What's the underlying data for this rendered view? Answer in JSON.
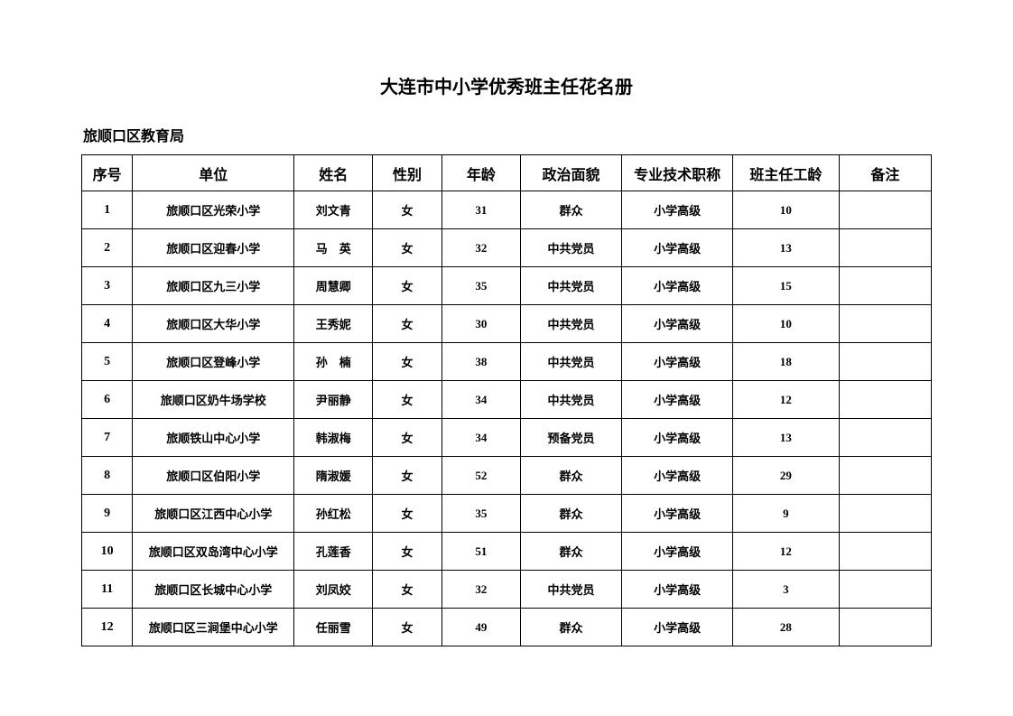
{
  "title": "大连市中小学优秀班主任花名册",
  "subtitle": "旅顺口区教育局",
  "columns": [
    "序号",
    "单位",
    "姓名",
    "性别",
    "年龄",
    "政治面貌",
    "专业技术职称",
    "班主任工龄",
    "备注"
  ],
  "rows": [
    {
      "seq": "1",
      "unit": "旅顺口区光荣小学",
      "name": "刘文青",
      "gender": "女",
      "age": "31",
      "political": "群众",
      "ptitle": "小学高级",
      "years": "10",
      "remark": ""
    },
    {
      "seq": "2",
      "unit": "旅顺口区迎春小学",
      "name": "马　英",
      "gender": "女",
      "age": "32",
      "political": "中共党员",
      "ptitle": "小学高级",
      "years": "13",
      "remark": ""
    },
    {
      "seq": "3",
      "unit": "旅顺口区九三小学",
      "name": "周慧卿",
      "gender": "女",
      "age": "35",
      "political": "中共党员",
      "ptitle": "小学高级",
      "years": "15",
      "remark": ""
    },
    {
      "seq": "4",
      "unit": "旅顺口区大华小学",
      "name": "王秀妮",
      "gender": "女",
      "age": "30",
      "political": "中共党员",
      "ptitle": "小学高级",
      "years": "10",
      "remark": ""
    },
    {
      "seq": "5",
      "unit": "旅顺口区登峰小学",
      "name": "孙　楠",
      "gender": "女",
      "age": "38",
      "political": "中共党员",
      "ptitle": "小学高级",
      "years": "18",
      "remark": ""
    },
    {
      "seq": "6",
      "unit": "旅顺口区奶牛场学校",
      "name": "尹丽静",
      "gender": "女",
      "age": "34",
      "political": "中共党员",
      "ptitle": "小学高级",
      "years": "12",
      "remark": ""
    },
    {
      "seq": "7",
      "unit": "旅顺铁山中心小学",
      "name": "韩淑梅",
      "gender": "女",
      "age": "34",
      "political": "预备党员",
      "ptitle": "小学高级",
      "years": "13",
      "remark": ""
    },
    {
      "seq": "8",
      "unit": "旅顺口区伯阳小学",
      "name": "隋淑媛",
      "gender": "女",
      "age": "52",
      "political": "群众",
      "ptitle": "小学高级",
      "years": "29",
      "remark": ""
    },
    {
      "seq": "9",
      "unit": "旅顺口区江西中心小学",
      "name": "孙红松",
      "gender": "女",
      "age": "35",
      "political": "群众",
      "ptitle": "小学高级",
      "years": "9",
      "remark": ""
    },
    {
      "seq": "10",
      "unit": "旅顺口区双岛湾中心小学",
      "name": "孔莲香",
      "gender": "女",
      "age": "51",
      "political": "群众",
      "ptitle": "小学高级",
      "years": "12",
      "remark": ""
    },
    {
      "seq": "11",
      "unit": "旅顺口区长城中心小学",
      "name": "刘凤姣",
      "gender": "女",
      "age": "32",
      "political": "中共党员",
      "ptitle": "小学高级",
      "years": "3",
      "remark": ""
    },
    {
      "seq": "12",
      "unit": "旅顺口区三涧堡中心小学",
      "name": "任丽雪",
      "gender": "女",
      "age": "49",
      "political": "群众",
      "ptitle": "小学高级",
      "years": "28",
      "remark": ""
    }
  ]
}
